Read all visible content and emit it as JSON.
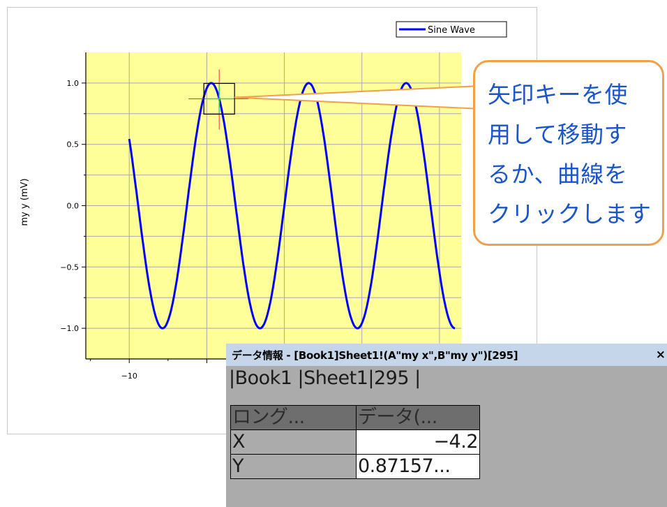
{
  "chart_data": {
    "type": "line",
    "title": "",
    "xlabel": "",
    "ylabel": "my y (mV)",
    "xlim": [
      -12.8,
      11.4
    ],
    "ylim": [
      -1.25,
      1.25
    ],
    "x_tick_labels": [
      "−10"
    ],
    "y_ticks": [
      1.0,
      0.5,
      0.0,
      -0.5,
      -1.0
    ],
    "y_tick_labels": [
      "1.0",
      "0.5",
      "0.0",
      "−0.5",
      "−1.0"
    ],
    "x_gridlines": [
      -10,
      -5,
      0,
      5,
      10
    ],
    "grid": true,
    "legend_position": "top-right",
    "plot_background": "#ffff99",
    "series": [
      {
        "name": "Sine Wave",
        "color": "#0000ff",
        "function": "sin(x)",
        "x_start": -10,
        "x_end": 11,
        "step": 0.1
      }
    ],
    "cursor": {
      "x": -4.2,
      "y": 0.87157
    }
  },
  "callout": {
    "lines": [
      "矢印キーを使",
      "用して移動す",
      "るか、曲線を",
      "クリックします"
    ]
  },
  "data_info": {
    "title": "データ情報 - [Book1]Sheet1!(A\"my x\",B\"my y\")[295]",
    "close": "×",
    "path": "|Book1 |Sheet1|295 |",
    "headers": [
      "ロング...",
      "データ(..."
    ],
    "rows": [
      {
        "name": "X",
        "value": "−4.2"
      },
      {
        "name": "Y",
        "value": "0.87157..."
      }
    ]
  },
  "colors": {
    "curve": "#0000ff",
    "plot_bg": "#ffff99",
    "callout_border": "#f0a04b",
    "callout_text": "#1a56c8",
    "crosshair": "#e8324a"
  }
}
